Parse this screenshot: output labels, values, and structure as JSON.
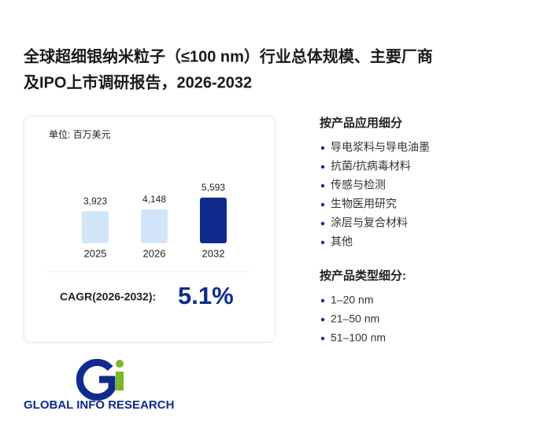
{
  "title": [
    "全球超细银纳米粒子（≤100 nm）行业总体规模、主要厂商",
    "及IPO上市调研报告，2026-2032"
  ],
  "chart_data": {
    "type": "bar",
    "subtitle": "单位: 百万美元",
    "categories": [
      "2025",
      "2026",
      "2032"
    ],
    "values": [
      3923,
      4148,
      5593
    ],
    "value_labels": [
      "3,923",
      "4,148",
      "5,593"
    ],
    "colors": [
      "#d3e5f8",
      "#d3e5f8",
      "#0f2b8d"
    ]
  },
  "cagr": {
    "label": "CAGR(2026-2032):",
    "value": "5.1%"
  },
  "segments": [
    {
      "heading": "按产品应用细分",
      "items": [
        "导电浆料与导电油墨",
        "抗菌/抗病毒材料",
        "传感与检测",
        "生物医用研究",
        "涂层与复合材料",
        "其他"
      ]
    },
    {
      "heading": "按产品类型细分:",
      "items": [
        "1–20 nm",
        "21–50 nm",
        "51–100 nm"
      ]
    }
  ],
  "logo": {
    "text": "GLOBAL INFO RESEARCH"
  }
}
